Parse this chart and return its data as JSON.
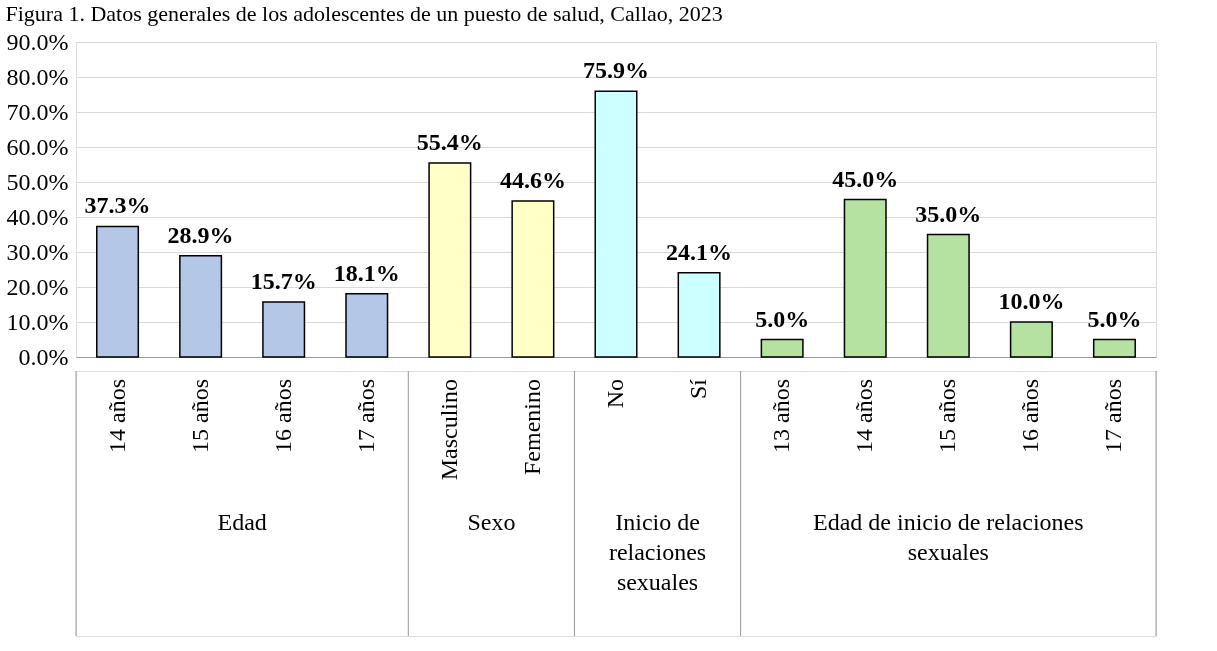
{
  "chart_data": {
    "type": "bar",
    "title": "Figura 1. Datos generales de los adolescentes de un puesto de salud, Callao, 2023",
    "categories": [
      "14 años",
      "15 años",
      "16 años",
      "17 años",
      "Masculino",
      "Femenino",
      "No",
      "Sí",
      "13 años",
      "14 años",
      "15 años",
      "16 años",
      "17 años"
    ],
    "values": [
      37.3,
      28.9,
      15.7,
      18.1,
      55.4,
      44.6,
      75.9,
      24.1,
      5.0,
      45.0,
      35.0,
      10.0,
      5.0
    ],
    "value_labels": [
      "37.3%",
      "28.9%",
      "15.7%",
      "18.1%",
      "55.4%",
      "44.6%",
      "75.9%",
      "24.1%",
      "5.0%",
      "45.0%",
      "35.0%",
      "10.0%",
      "5.0%"
    ],
    "colors": [
      "#b4c7e7",
      "#b4c7e7",
      "#b4c7e7",
      "#b4c7e7",
      "#ffffc6",
      "#ffffc6",
      "#ccffff",
      "#ccffff",
      "#b5e2a0",
      "#b5e2a0",
      "#b5e2a0",
      "#b5e2a0",
      "#b5e2a0"
    ],
    "annotations": [
      "Edad",
      "Sexo",
      "Inicio de relaciones sexuales",
      "Edad de inicio de relaciones sexuales"
    ],
    "ylim": [
      0,
      90
    ],
    "yticks": [
      {
        "value": 0,
        "label": "0.0%"
      },
      {
        "value": 10,
        "label": "10.0%"
      },
      {
        "value": 20,
        "label": "20.0%"
      },
      {
        "value": 30,
        "label": "30.0%"
      },
      {
        "value": 40,
        "label": "40.0%"
      },
      {
        "value": 50,
        "label": "50.0%"
      },
      {
        "value": 60,
        "label": "60.0%"
      },
      {
        "value": 70,
        "label": "70.0%"
      },
      {
        "value": 80,
        "label": "80.0%"
      },
      {
        "value": 90,
        "label": "90.0%"
      }
    ],
    "grid": "y"
  }
}
